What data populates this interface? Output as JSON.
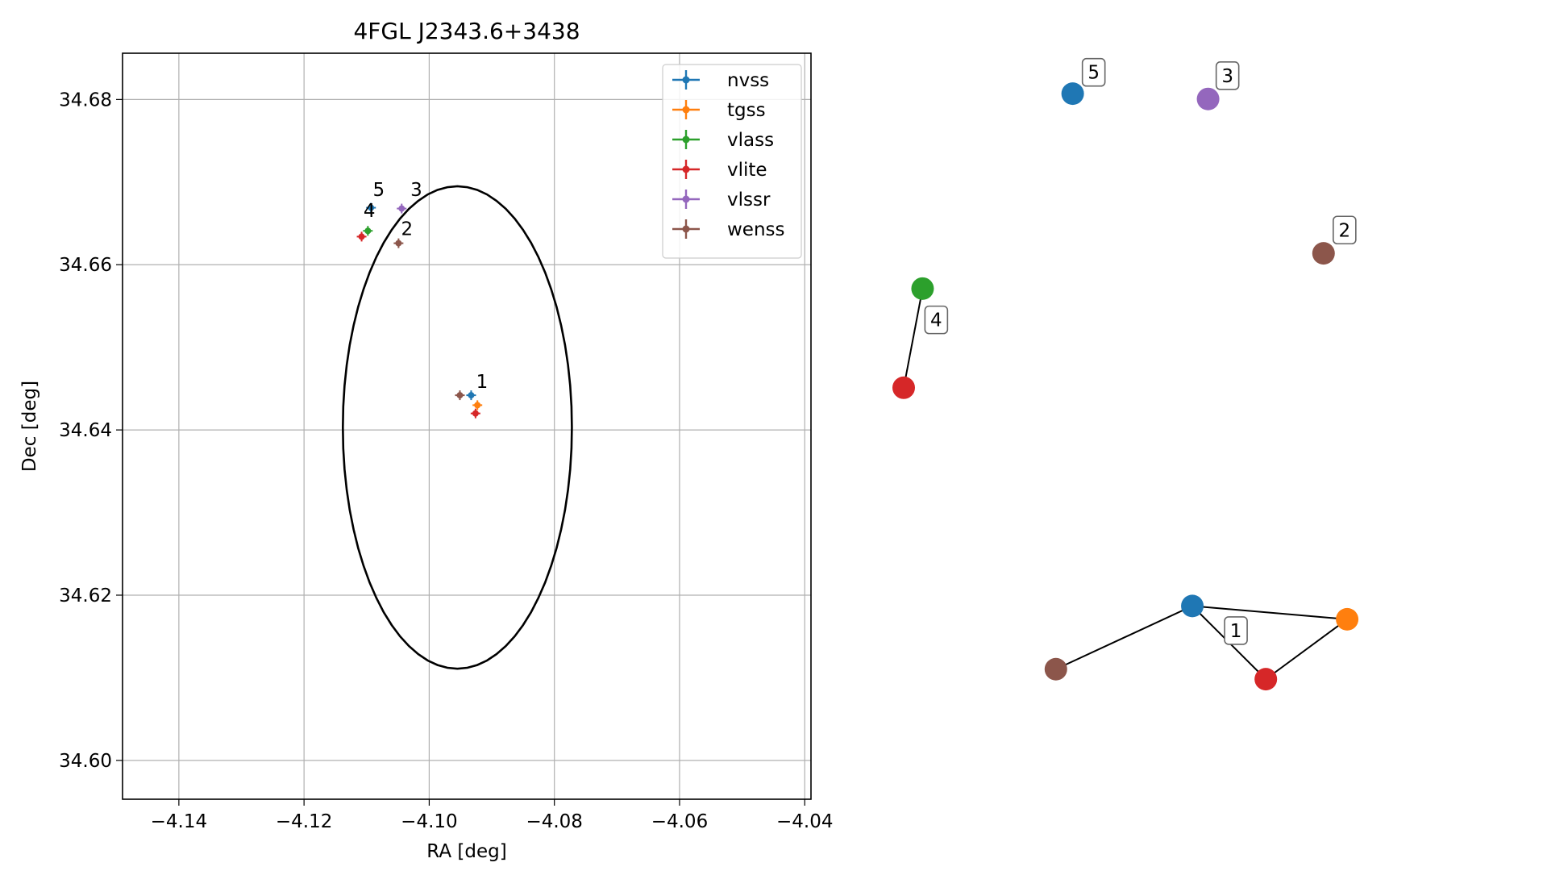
{
  "chart_data": [
    {
      "type": "scatter",
      "title": "4FGL J2343.6+3438",
      "xlabel": "RA [deg]",
      "ylabel": "Dec [deg]",
      "xlim": [
        -4.149,
        -4.039
      ],
      "ylim": [
        34.5953,
        34.6856
      ],
      "xticks": [
        -4.14,
        -4.12,
        -4.1,
        -4.08,
        -4.06,
        -4.04
      ],
      "xtick_labels": [
        "−4.14",
        "−4.12",
        "−4.10",
        "−4.08",
        "−4.06",
        "−4.04"
      ],
      "yticks": [
        34.6,
        34.62,
        34.64,
        34.66,
        34.68
      ],
      "ytick_labels": [
        "34.60",
        "34.62",
        "34.64",
        "34.66",
        "34.68"
      ],
      "grid": true,
      "legend_position": "top-right",
      "circle": {
        "center": [
          -4.0955,
          34.6403
        ],
        "radius_ra": 0.0183,
        "radius_dec": 0.0292,
        "color": "#000000"
      },
      "series": [
        {
          "name": "nvss",
          "color": "#1f77b4",
          "points": [
            {
              "x": -4.0933,
              "y": 34.6442
            },
            {
              "x": -4.1093,
              "y": 34.6669
            }
          ]
        },
        {
          "name": "tgss",
          "color": "#ff7f0e",
          "points": [
            {
              "x": -4.0923,
              "y": 34.643
            }
          ]
        },
        {
          "name": "vlass",
          "color": "#2ca02c",
          "points": [
            {
              "x": -4.1098,
              "y": 34.6641
            }
          ]
        },
        {
          "name": "vlite",
          "color": "#d62728",
          "points": [
            {
              "x": -4.0926,
              "y": 34.642
            },
            {
              "x": -4.1108,
              "y": 34.6634
            }
          ]
        },
        {
          "name": "vlssr",
          "color": "#9467bd",
          "points": [
            {
              "x": -4.1044,
              "y": 34.6668
            }
          ]
        },
        {
          "name": "wenss",
          "color": "#8c564b",
          "points": [
            {
              "x": -4.0951,
              "y": 34.6442
            },
            {
              "x": -4.1049,
              "y": 34.6626
            }
          ]
        }
      ],
      "annotations": [
        {
          "text": "1",
          "x": -4.0925,
          "y": 34.6451
        },
        {
          "text": "2",
          "x": -4.1045,
          "y": 34.6636
        },
        {
          "text": "3",
          "x": -4.103,
          "y": 34.6683
        },
        {
          "text": "4",
          "x": -4.1105,
          "y": 34.6658
        },
        {
          "text": "5",
          "x": -4.109,
          "y": 34.6683
        }
      ]
    },
    {
      "type": "network",
      "nodes": [
        {
          "id": "n1-nvss",
          "color": "#1f77b4",
          "pos": [
            0.55,
            0.815
          ]
        },
        {
          "id": "n1-tgss",
          "color": "#ff7f0e",
          "pos": [
            0.845,
            0.835
          ]
        },
        {
          "id": "n1-vlite",
          "color": "#d62728",
          "pos": [
            0.69,
            0.925
          ]
        },
        {
          "id": "n1-wenss",
          "color": "#8c564b",
          "pos": [
            0.29,
            0.91
          ]
        },
        {
          "id": "n2-wenss",
          "color": "#8c564b",
          "pos": [
            0.8,
            0.285
          ]
        },
        {
          "id": "n3-vlssr",
          "color": "#9467bd",
          "pos": [
            0.58,
            0.053
          ]
        },
        {
          "id": "n4-vlass",
          "color": "#2ca02c",
          "pos": [
            0.036,
            0.338
          ]
        },
        {
          "id": "n4-vlite",
          "color": "#d62728",
          "pos": [
            0.0,
            0.487
          ]
        },
        {
          "id": "n5-nvss",
          "color": "#1f77b4",
          "pos": [
            0.322,
            0.045
          ]
        }
      ],
      "edges": [
        [
          "n1-nvss",
          "n1-tgss"
        ],
        [
          "n1-nvss",
          "n1-vlite"
        ],
        [
          "n1-nvss",
          "n1-wenss"
        ],
        [
          "n1-tgss",
          "n1-vlite"
        ],
        [
          "n4-vlass",
          "n4-vlite"
        ]
      ],
      "labels": [
        {
          "text": "1",
          "pos": [
            0.633,
            0.852
          ]
        },
        {
          "text": "2",
          "pos": [
            0.84,
            0.25
          ]
        },
        {
          "text": "3",
          "pos": [
            0.617,
            0.018
          ]
        },
        {
          "text": "4",
          "pos": [
            0.062,
            0.385
          ]
        },
        {
          "text": "5",
          "pos": [
            0.362,
            0.013
          ]
        }
      ]
    }
  ]
}
